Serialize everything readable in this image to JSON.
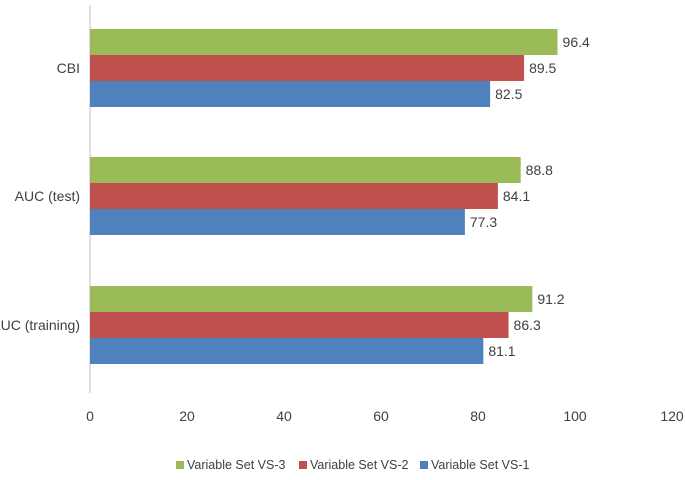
{
  "chart_data": {
    "type": "bar",
    "orientation": "horizontal",
    "categories": [
      "CBI",
      "AUC (test)",
      "AUC (training)"
    ],
    "series": [
      {
        "name": "Variable Set VS-3",
        "color": "#9bbb59",
        "values": [
          96.4,
          88.8,
          91.2
        ]
      },
      {
        "name": "Variable Set VS-2",
        "color": "#c0504d",
        "values": [
          89.5,
          84.1,
          86.3
        ]
      },
      {
        "name": "Variable Set VS-1",
        "color": "#4f81bd",
        "values": [
          82.5,
          77.3,
          81.1
        ]
      }
    ],
    "xlim": [
      0,
      120
    ],
    "xticks": [
      "0",
      "20",
      "40",
      "60",
      "80",
      "100",
      "120"
    ],
    "grid": false,
    "legend_position": "bottom"
  }
}
